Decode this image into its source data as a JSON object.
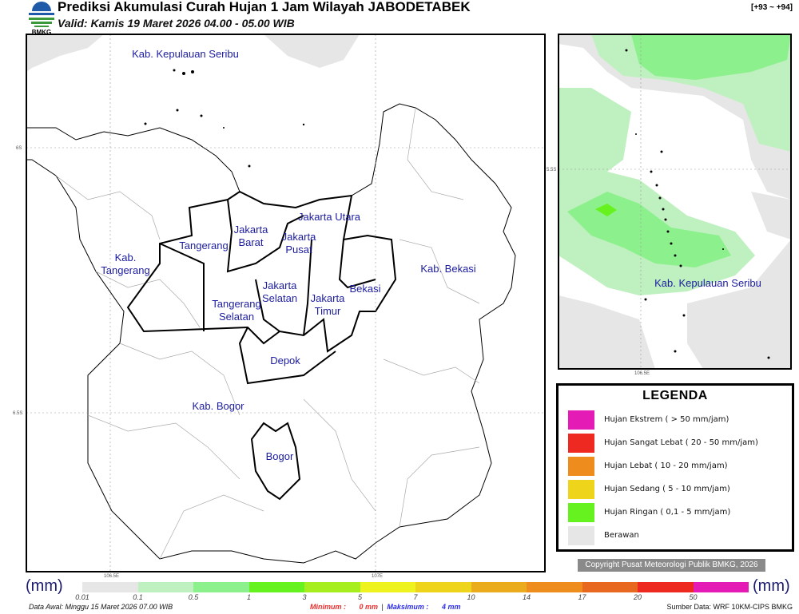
{
  "header": {
    "title": "Prediksi Akumulasi Curah Hujan 1 Jam Wilayah JABODETABEK",
    "valid": "Valid: Kamis 19 Maret 2026 04.00 - 05.00 WIB",
    "run_range": "[+93 ~ +94]",
    "logo_text": "BMKG"
  },
  "map": {
    "labels": [
      {
        "lines": [
          "Kab. Kepulauan Seribu"
        ]
      },
      {
        "lines": [
          "Jakarta Utara"
        ]
      },
      {
        "lines": [
          "Jakarta",
          "Barat"
        ]
      },
      {
        "lines": [
          "Jakarta",
          "Pusat"
        ]
      },
      {
        "lines": [
          "Tangerang"
        ]
      },
      {
        "lines": [
          "Kab.",
          "Tangerang"
        ]
      },
      {
        "lines": [
          "Kab. Bekasi"
        ]
      },
      {
        "lines": [
          "Jakarta",
          "Selatan"
        ]
      },
      {
        "lines": [
          "Bekasi"
        ]
      },
      {
        "lines": [
          "Jakarta",
          "Timur"
        ]
      },
      {
        "lines": [
          "Tangerang",
          "Selatan"
        ]
      },
      {
        "lines": [
          "Depok"
        ]
      },
      {
        "lines": [
          "Kab. Bogor"
        ]
      },
      {
        "lines": [
          "Bogor"
        ]
      }
    ],
    "ticks": {
      "lat1": "6S",
      "lat2": "6.5S",
      "lon1": "106.5E",
      "lon2": "107E"
    }
  },
  "inset": {
    "label": "Kab. Kepulauan Seribu",
    "lat": "5.5S",
    "lon": "106.5E"
  },
  "legend": {
    "title": "LEGENDA",
    "items": [
      {
        "label": "Hujan Ekstrem ( > 50 mm/jam)",
        "color": "#e41bb4"
      },
      {
        "label": "Hujan Sangat Lebat ( 20 - 50 mm/jam)",
        "color": "#ee2922"
      },
      {
        "label": "Hujan Lebat ( 10 - 20 mm/jam)",
        "color": "#ee8c1e"
      },
      {
        "label": "Hujan Sedang ( 5 - 10 mm/jam)",
        "color": "#eed41a"
      },
      {
        "label": "Hujan Ringan ( 0,1 - 5 mm/jam)",
        "color": "#66f21f"
      },
      {
        "label": "Berawan",
        "color": "#e6e6e6"
      }
    ]
  },
  "copyright": "Copyright Pusat Meteorologi Publik BMKG, 2026",
  "colorbar": {
    "unit": "(mm)",
    "ticks": [
      "0.01",
      "0.1",
      "0.5",
      "1",
      "3",
      "5",
      "7",
      "10",
      "14",
      "17",
      "20",
      "50"
    ],
    "colors": [
      "#e6e6e6",
      "#bff0bf",
      "#8cf08c",
      "#66f21f",
      "#a6ee1e",
      "#eef21e",
      "#eed41a",
      "#eaac1c",
      "#ee8c1e",
      "#e86820",
      "#ee2922",
      "#e41bb4"
    ]
  },
  "footer": {
    "data_awal": "Data Awal: Minggu 15 Maret 2026 07.00 WIB",
    "min_label": "Minimum :",
    "min_value": "0 mm",
    "sep": "|",
    "max_label": "Maksimum :",
    "max_value": "4 mm",
    "source": "Sumber Data: WRF 10KM-CIPS BMKG"
  }
}
